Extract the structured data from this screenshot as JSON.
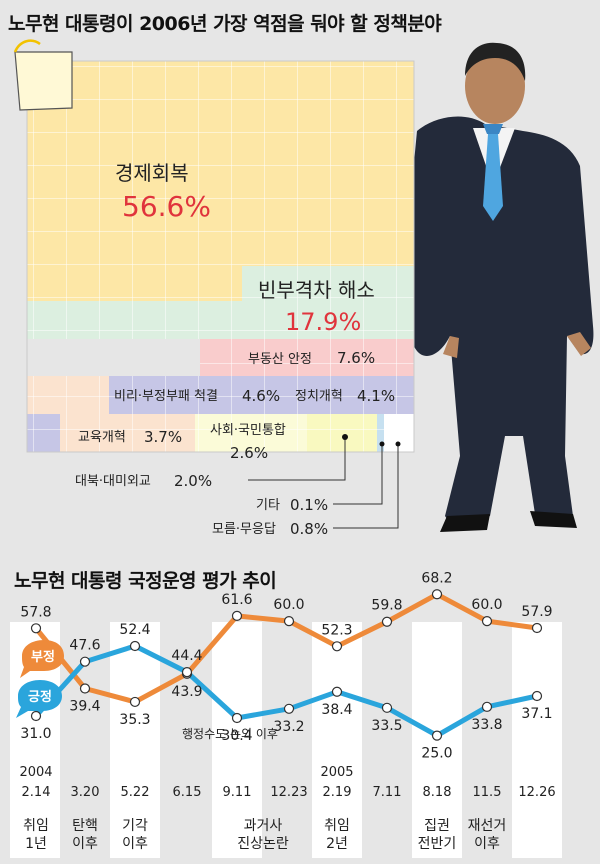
{
  "treemap": {
    "title": "노무현 대통령이 2006년 가장 역점을 둬야 할 정책분야",
    "items": [
      {
        "label": "경제회복",
        "value": "56.6%",
        "color": "#fde7a6"
      },
      {
        "label": "빈부격차 해소",
        "value": "17.9%",
        "color": "#dcefe0"
      },
      {
        "label": "부동산 안정",
        "value": "7.6%",
        "color": "#f9cccc"
      },
      {
        "label": "비리·부정부패 척결",
        "value": "4.6%",
        "color": "#c6c6e6"
      },
      {
        "label": "정치개혁",
        "value": "4.1%",
        "color": "#c6c6e6"
      },
      {
        "label": "교육개혁",
        "value": "3.7%",
        "color": "#fbe3cf"
      },
      {
        "label": "사회·국민통합",
        "value": "2.6%",
        "color": "#fbfbd8"
      },
      {
        "label": "대북·대미외교",
        "value": "2.0%",
        "color": "#f9f9c0"
      },
      {
        "label": "기타",
        "value": "0.1%",
        "color": "#c6e0f0"
      },
      {
        "label": "모름·무응답",
        "value": "0.8%",
        "color": "#ffffff"
      }
    ]
  },
  "line_chart": {
    "title": "노무현 대통령 국정운영 평가 추이",
    "annotation": "행정수도 논의 이후",
    "negative_color": "#ee8a3a",
    "positive_color": "#2aa5dc"
  },
  "chart_data": {
    "type": "line",
    "categories": [
      "2004 2.14",
      "3.20",
      "5.22",
      "6.15",
      "9.11",
      "12.23",
      "2005 2.19",
      "7.11",
      "8.18",
      "11.5",
      "12.26"
    ],
    "series": [
      {
        "name": "부정",
        "values": [
          57.8,
          39.4,
          35.3,
          43.9,
          61.6,
          60.0,
          52.3,
          59.8,
          68.2,
          60.0,
          57.9
        ]
      },
      {
        "name": "긍정",
        "values": [
          31.0,
          47.6,
          52.4,
          44.4,
          30.4,
          33.2,
          38.4,
          33.5,
          25.0,
          33.8,
          37.1
        ]
      }
    ],
    "value_labels": {
      "부정": [
        "57.8",
        "39.4",
        "35.3",
        "43.9",
        "61.6",
        "60.0",
        "52.3",
        "59.8",
        "68.2",
        "60.0",
        "57.9"
      ],
      "긍정": [
        "31.0",
        "47.6",
        "52.4",
        "44.4",
        "30.4",
        "33.2",
        "38.4",
        "33.5",
        "25.0",
        "33.8",
        "37.1"
      ]
    },
    "events": [
      {
        "label": "취임 1년",
        "index": 0
      },
      {
        "label": "탄핵 이후",
        "index": 1
      },
      {
        "label": "기각 이후",
        "index": 2
      },
      {
        "label": "과거사 진상논란",
        "index": 4.5
      },
      {
        "label": "취임 2년",
        "index": 6
      },
      {
        "label": "집권 전반기",
        "index": 8
      },
      {
        "label": "재선거 이후",
        "index": 9
      }
    ]
  }
}
